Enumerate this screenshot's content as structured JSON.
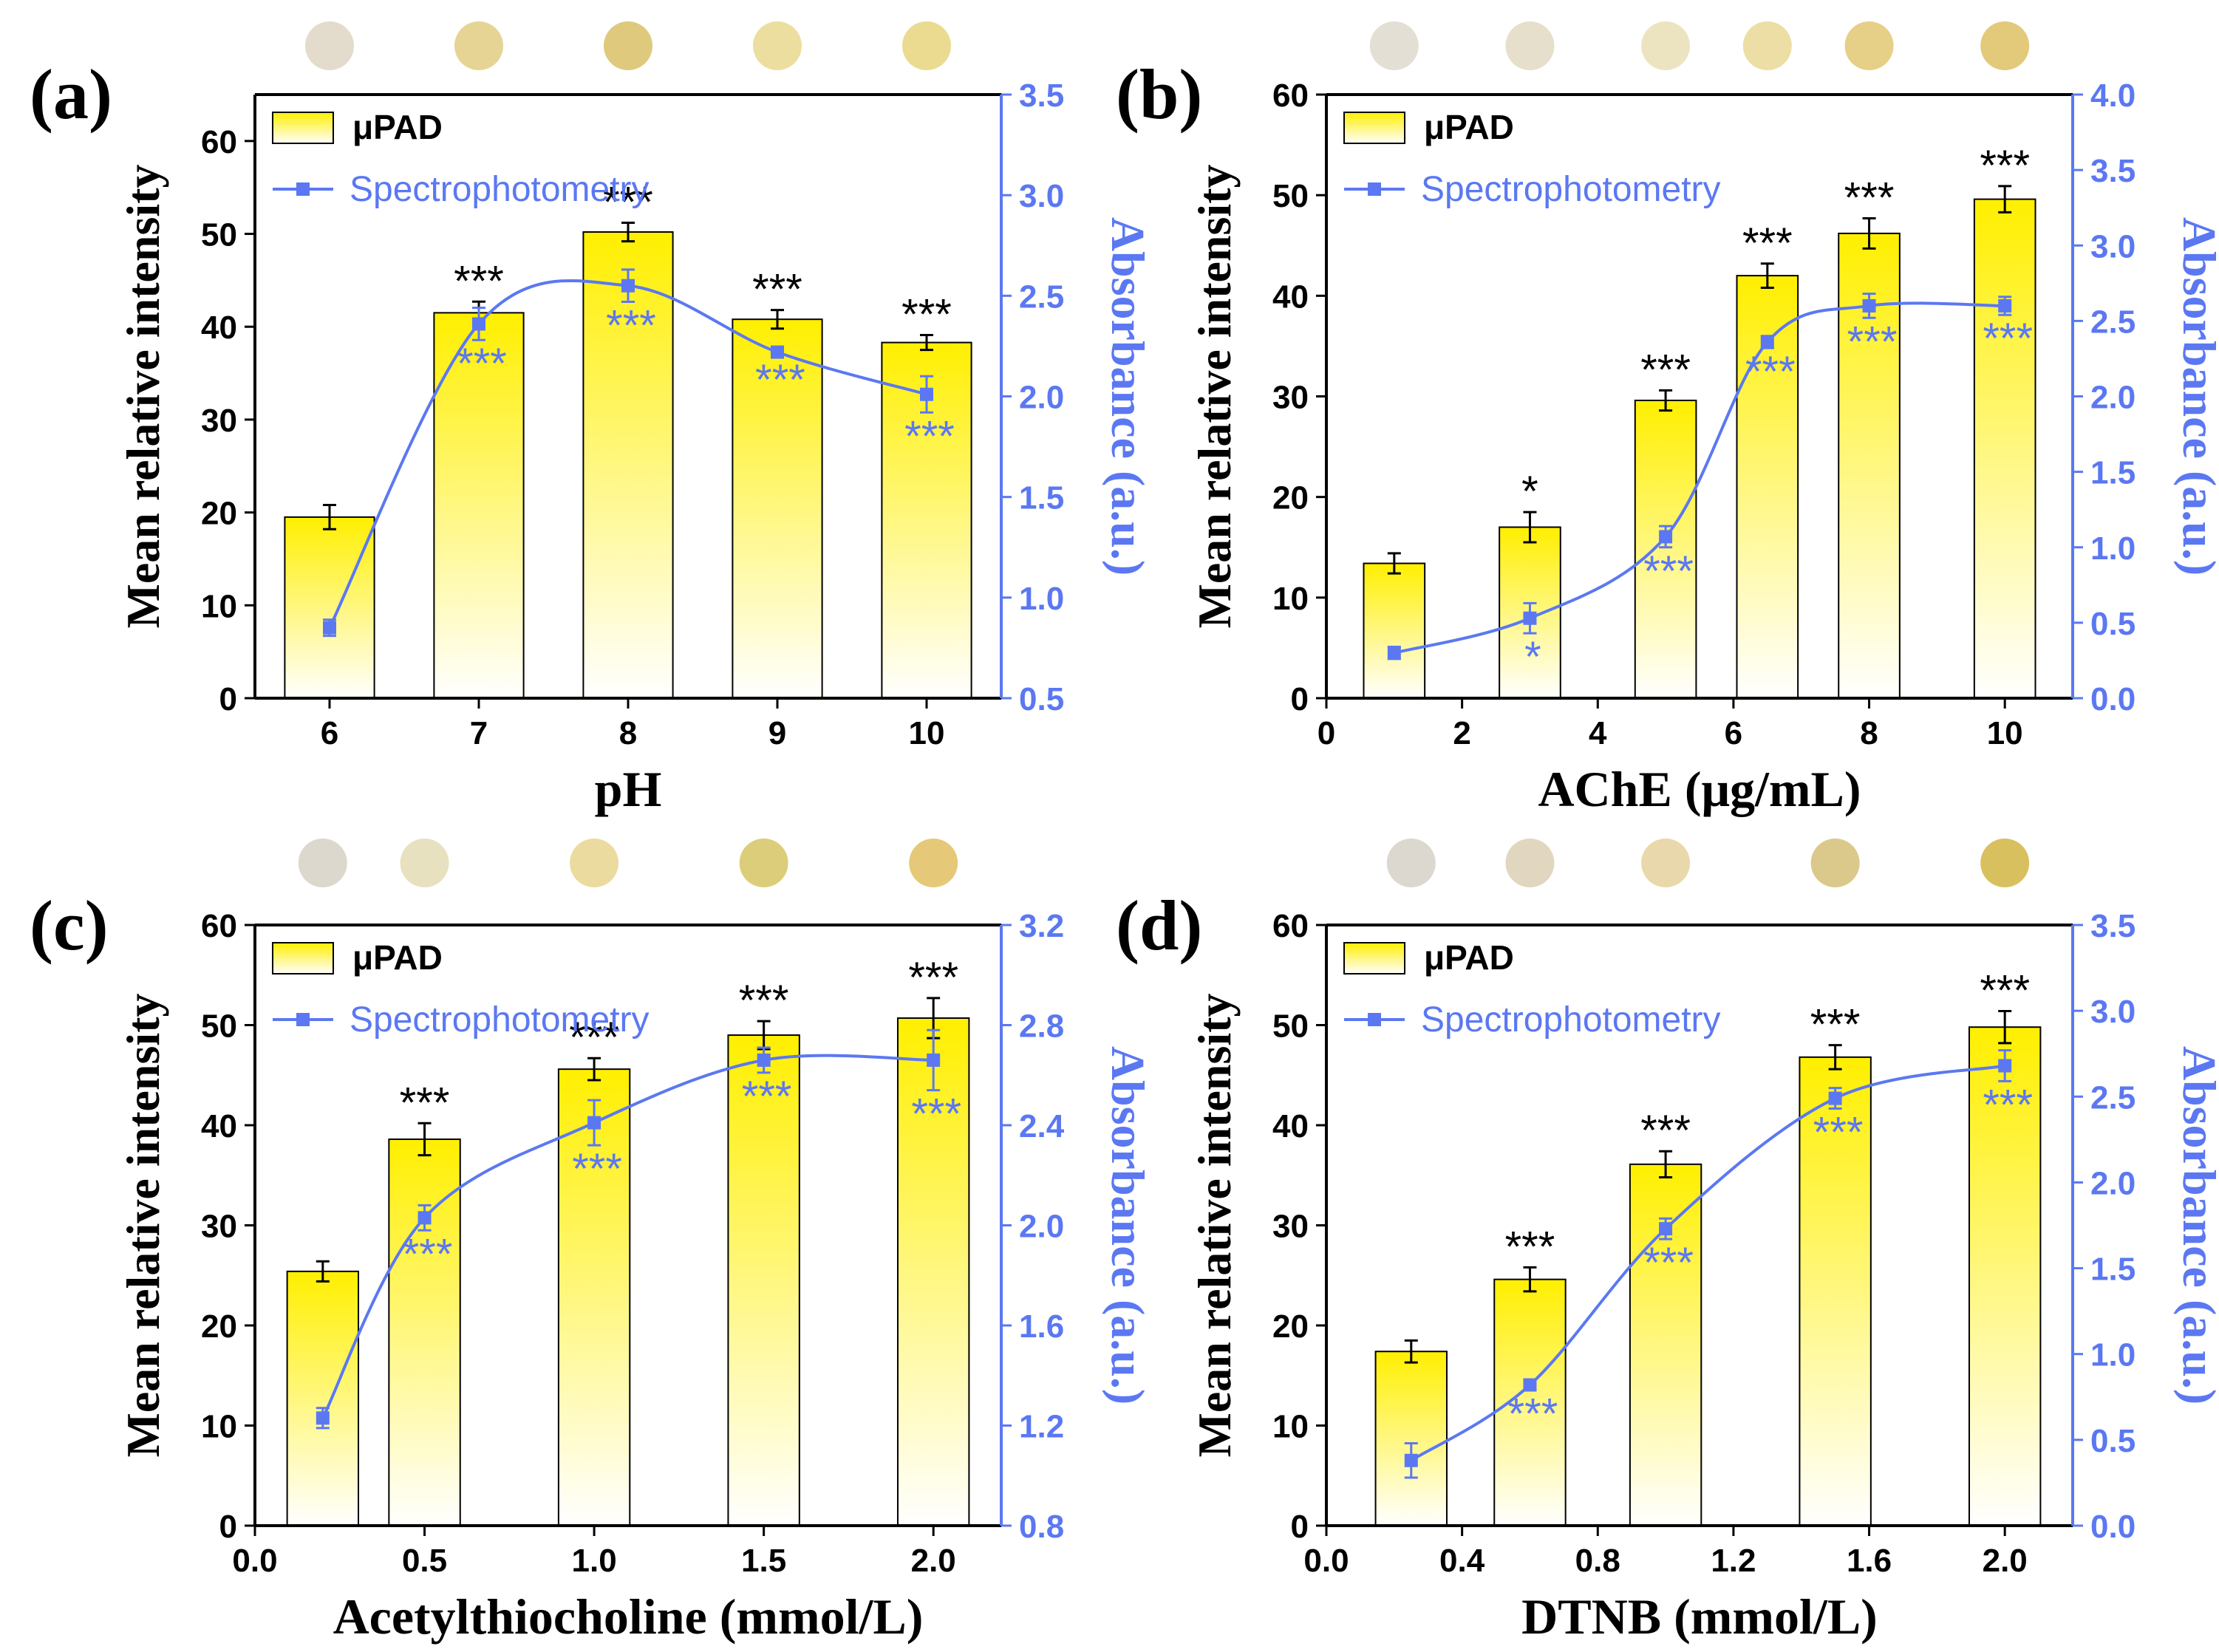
{
  "colors": {
    "bar_top": "#ffef00",
    "bar_bottom": "#ffffff",
    "line": "#5b78f2",
    "axis_right": "#5b78f2",
    "axis_left": "#000000",
    "star_black": "#000000",
    "star_blue": "#5b78f2"
  },
  "chart_data": [
    {
      "type": "bar+line",
      "panel_label": "(a)",
      "xlabel": "pH",
      "ylabel": "Mean relative intensity",
      "y2label": "Absorbance (a.u.)",
      "x_axis": "categorical",
      "categories": [
        "6",
        "7",
        "8",
        "9",
        "10"
      ],
      "xlim": [
        5.5,
        10.5
      ],
      "ylim": [
        0,
        65
      ],
      "yticks": [
        0,
        10,
        20,
        30,
        40,
        50,
        60
      ],
      "y2lim": [
        0.5,
        3.5
      ],
      "y2ticks": [
        "0.5",
        "1.0",
        "1.5",
        "2.0",
        "2.5",
        "3.0",
        "3.5"
      ],
      "legend": {
        "bar": "μPAD",
        "line": "Spectrophotometry",
        "position": "top-left"
      },
      "bar_x": [
        6,
        7,
        8,
        9,
        10
      ],
      "bar_values": [
        19.5,
        41.5,
        50.2,
        40.8,
        38.3
      ],
      "bar_errors": [
        1.3,
        1.2,
        1.0,
        1.0,
        0.8
      ],
      "bar_sig": [
        "",
        "***",
        "***",
        "***",
        "***"
      ],
      "bar_width": 0.6,
      "line_x": [
        6,
        7,
        8,
        9,
        10
      ],
      "line_values": [
        0.85,
        2.36,
        2.55,
        2.22,
        2.01
      ],
      "line_errors": [
        0.04,
        0.08,
        0.08,
        0.02,
        0.09
      ],
      "line_sig": [
        "",
        "***",
        "***",
        "***",
        "***"
      ],
      "swatch_colors": [
        "#e3dccd",
        "#e6d495",
        "#dfc97c",
        "#ecde9e",
        "#eadb91"
      ]
    },
    {
      "type": "bar+line",
      "panel_label": "(b)",
      "xlabel": "AChE (μg/mL)",
      "ylabel": "Mean relative intensity",
      "y2label": "Absorbance (a.u.)",
      "x_axis": "numeric",
      "xlim": [
        0,
        11
      ],
      "xticks": [
        0,
        2,
        4,
        6,
        8,
        10
      ],
      "xtick_labels": [
        "0",
        "2",
        "4",
        "6",
        "8",
        "10"
      ],
      "ylim": [
        0,
        60
      ],
      "yticks": [
        0,
        10,
        20,
        30,
        40,
        50,
        60
      ],
      "y2lim": [
        0.0,
        4.0
      ],
      "y2ticks": [
        "0.0",
        "0.5",
        "1.0",
        "1.5",
        "2.0",
        "2.5",
        "3.0",
        "3.5",
        "4.0"
      ],
      "legend": {
        "bar": "μPAD",
        "line": "Spectrophotometry",
        "position": "top-left"
      },
      "bar_x": [
        1,
        3,
        5,
        6.5,
        8,
        10
      ],
      "bar_values": [
        13.4,
        17.0,
        29.6,
        42.0,
        46.2,
        49.6
      ],
      "bar_errors": [
        1.0,
        1.5,
        1.0,
        1.2,
        1.5,
        1.3
      ],
      "bar_sig": [
        "",
        "*",
        "***",
        "***",
        "***",
        "***"
      ],
      "bar_width": 0.9,
      "line_x": [
        1,
        3,
        5,
        6.5,
        8,
        10
      ],
      "line_values": [
        0.3,
        0.53,
        1.07,
        2.36,
        2.6,
        2.6
      ],
      "line_errors": [
        0.04,
        0.1,
        0.07,
        0.04,
        0.08,
        0.06
      ],
      "line_sig": [
        "",
        "*",
        "***",
        "***",
        "***",
        "***"
      ],
      "swatch_colors": [
        "#e4dfd5",
        "#e6dfcc",
        "#ece4c0",
        "#ecdea4",
        "#e6cf86",
        "#e3c97a"
      ]
    },
    {
      "type": "bar+line",
      "panel_label": "(c)",
      "xlabel": "Acetylthiocholine (mmol/L)",
      "ylabel": "Mean relative intensity",
      "y2label": "Absorbance (a.u.)",
      "x_axis": "numeric",
      "xlim": [
        0,
        2.2
      ],
      "xticks": [
        0,
        0.5,
        1,
        1.5,
        2
      ],
      "xtick_labels": [
        "0.0",
        "0.5",
        "1.0",
        "1.5",
        "2.0"
      ],
      "ylim": [
        0,
        60
      ],
      "yticks": [
        0,
        10,
        20,
        30,
        40,
        50,
        60
      ],
      "y2lim": [
        0.8,
        3.2
      ],
      "y2ticks": [
        "0.8",
        "1.2",
        "1.6",
        "2.0",
        "2.4",
        "2.8",
        "3.2"
      ],
      "legend": {
        "bar": "μPAD",
        "line": "Spectrophotometry",
        "position": "top-left"
      },
      "bar_x": [
        0.2,
        0.5,
        1.0,
        1.5,
        2.0
      ],
      "bar_values": [
        25.4,
        38.6,
        45.6,
        49.0,
        50.7
      ],
      "bar_errors": [
        1.0,
        1.6,
        1.1,
        1.4,
        2.0
      ],
      "bar_sig": [
        "",
        "***",
        "***",
        "***",
        "***"
      ],
      "bar_width": 0.21,
      "line_x": [
        0.2,
        0.5,
        1.0,
        1.5,
        2.0
      ],
      "line_values": [
        1.23,
        2.03,
        2.41,
        2.66,
        2.66
      ],
      "line_errors": [
        0.04,
        0.05,
        0.09,
        0.05,
        0.12
      ],
      "line_sig": [
        "",
        "***",
        "***",
        "***",
        "***"
      ],
      "swatch_colors": [
        "#ddd8cd",
        "#e8e1c0",
        "#ecdb9e",
        "#dccd7a",
        "#e5c978"
      ]
    },
    {
      "type": "bar+line",
      "panel_label": "(d)",
      "xlabel": "DTNB (mmol/L)",
      "ylabel": "Mean relative intensity",
      "y2label": "Absorbance (a.u.)",
      "x_axis": "numeric",
      "xlim": [
        0,
        2.2
      ],
      "xticks": [
        0,
        0.4,
        0.8,
        1.2,
        1.6,
        2
      ],
      "xtick_labels": [
        "0.0",
        "0.4",
        "0.8",
        "1.2",
        "1.6",
        "2.0"
      ],
      "ylim": [
        0,
        60
      ],
      "yticks": [
        0,
        10,
        20,
        30,
        40,
        50,
        60
      ],
      "y2lim": [
        0.0,
        3.5
      ],
      "y2ticks": [
        "0.0",
        "0.5",
        "1.0",
        "1.5",
        "2.0",
        "2.5",
        "3.0",
        "3.5"
      ],
      "legend": {
        "bar": "μPAD",
        "line": "Spectrophotometry",
        "position": "top-left"
      },
      "bar_x": [
        0.25,
        0.6,
        1.0,
        1.5,
        2.0
      ],
      "bar_values": [
        17.4,
        24.6,
        36.1,
        46.8,
        49.8
      ],
      "bar_errors": [
        1.1,
        1.2,
        1.3,
        1.2,
        1.6
      ],
      "bar_sig": [
        "",
        "***",
        "***",
        "***",
        "***"
      ],
      "bar_width": 0.21,
      "line_x": [
        0.25,
        0.6,
        1.0,
        1.5,
        2.0
      ],
      "line_values": [
        0.38,
        0.82,
        1.73,
        2.49,
        2.68
      ],
      "line_errors": [
        0.1,
        0.03,
        0.06,
        0.06,
        0.09
      ],
      "line_sig": [
        "",
        "***",
        "***",
        "***",
        "***"
      ],
      "swatch_colors": [
        "#dcd8cf",
        "#e1d6bf",
        "#e9d8ab",
        "#dac98a",
        "#d9c05e"
      ]
    }
  ]
}
